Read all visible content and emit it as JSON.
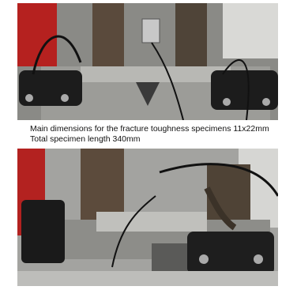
{
  "figure": {
    "caption": [
      "Main dimensions  for the fracture toughness specimens 11x22mm",
      "Total specimen length 340mm"
    ]
  }
}
